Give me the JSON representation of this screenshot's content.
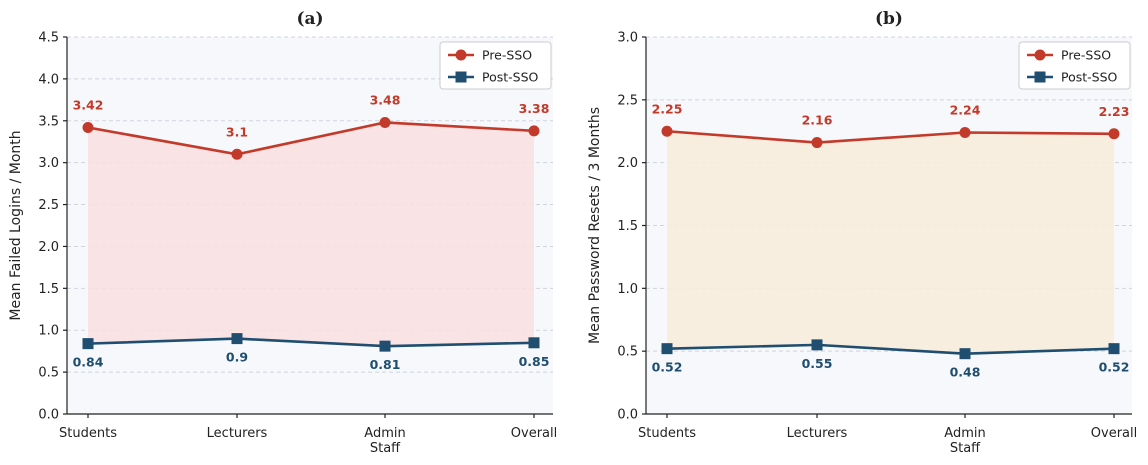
{
  "chart_data": [
    {
      "type": "line",
      "title": "(a)",
      "xlabel": "",
      "ylabel": "Mean Failed Logins / Month",
      "categories": [
        [
          "Students"
        ],
        [
          "Lecturers"
        ],
        [
          "Admin",
          "Staff"
        ],
        [
          "Overall"
        ]
      ],
      "ylim": [
        0,
        4.5
      ],
      "yticks": [
        "0.0",
        "0.5",
        "1.0",
        "1.5",
        "2.0",
        "2.5",
        "3.0",
        "3.5",
        "4.0",
        "4.5"
      ],
      "ytick_values": [
        0,
        0.5,
        1.0,
        1.5,
        2.0,
        2.5,
        3.0,
        3.5,
        4.0,
        4.5
      ],
      "fill_color": "#f9dfe0",
      "grid": "horizontal, dashed",
      "legend_position": "top-right",
      "series": [
        {
          "name": "Pre-SSO",
          "values": [
            3.42,
            3.1,
            3.48,
            3.38
          ],
          "labels": [
            "3.42",
            "3.1",
            "3.48",
            "3.38"
          ],
          "color": "#c33a2b",
          "marker": "circle"
        },
        {
          "name": "Post-SSO",
          "values": [
            0.84,
            0.9,
            0.81,
            0.85
          ],
          "labels": [
            "0.84",
            "0.9",
            "0.81",
            "0.85"
          ],
          "color": "#1f4e70",
          "marker": "square"
        }
      ]
    },
    {
      "type": "line",
      "title": "(b)",
      "xlabel": "",
      "ylabel": "Mean Password Resets / 3 Months",
      "categories": [
        [
          "Students"
        ],
        [
          "Lecturers"
        ],
        [
          "Admin",
          "Staff"
        ],
        [
          "Overall"
        ]
      ],
      "ylim": [
        0,
        3.0
      ],
      "yticks": [
        "0.0",
        "0.5",
        "1.0",
        "1.5",
        "2.0",
        "2.5",
        "3.0"
      ],
      "ytick_values": [
        0,
        0.5,
        1.0,
        1.5,
        2.0,
        2.5,
        3.0
      ],
      "fill_color": "#f8ecda",
      "grid": "horizontal, dashed",
      "legend_position": "top-right",
      "series": [
        {
          "name": "Pre-SSO",
          "values": [
            2.25,
            2.16,
            2.24,
            2.23
          ],
          "labels": [
            "2.25",
            "2.16",
            "2.24",
            "2.23"
          ],
          "color": "#c33a2b",
          "marker": "circle"
        },
        {
          "name": "Post-SSO",
          "values": [
            0.52,
            0.55,
            0.48,
            0.52
          ],
          "labels": [
            "0.52",
            "0.55",
            "0.48",
            "0.52"
          ],
          "color": "#1f4e70",
          "marker": "square"
        }
      ]
    }
  ],
  "colors": {
    "plot_background": "#f7f8fb",
    "pre_sso": "#c33a2b",
    "post_sso": "#1f4e70"
  }
}
